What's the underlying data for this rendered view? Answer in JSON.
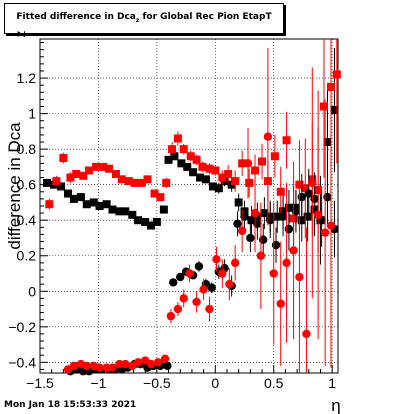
{
  "title": {
    "main": "Fitted difference in Dca",
    "subscript": "z",
    "rest": " for Global Rec Pion EtapT"
  },
  "footer": "Mon Jan 18 15:53:33 2021",
  "chart_data": {
    "type": "scatter",
    "xlabel": "η",
    "ylabel": "difference in Dca",
    "ylabel_subscript": "z",
    "xlim": [
      -1.5,
      1.05
    ],
    "ylim": [
      -0.46,
      1.42
    ],
    "xticks": [
      -1.5,
      -1,
      -0.5,
      0,
      0.5,
      1
    ],
    "xtick_labels": [
      "−1.5",
      "−1",
      "−0.5",
      "0",
      "0.5",
      "1"
    ],
    "yticks": [
      -0.4,
      -0.2,
      0,
      0.2,
      0.4,
      0.6,
      0.8,
      1,
      1.2
    ],
    "ytick_labels": [
      "−0.4",
      "−0.2",
      "0",
      "0.2",
      "0.4",
      "0.6",
      "0.8",
      "1",
      "1.2"
    ],
    "grid": true,
    "series": [
      {
        "marker": "square",
        "color": "#000000",
        "x": [
          -1.44,
          -1.38,
          -1.32,
          -1.26,
          -1.21,
          -1.15,
          -1.1,
          -1.04,
          -0.99,
          -0.93,
          -0.88,
          -0.82,
          -0.77,
          -0.71,
          -0.66,
          -0.6,
          -0.55,
          -0.5,
          -0.44,
          -0.4,
          -0.35,
          -0.29,
          -0.24,
          -0.19,
          -0.13,
          -0.08,
          -0.02,
          0.03,
          0.08,
          0.14,
          0.2,
          0.25,
          0.31,
          0.36,
          0.42,
          0.47,
          0.53,
          0.58,
          0.63,
          0.69,
          0.74,
          0.79,
          0.85,
          0.9,
          0.96,
          1.02
        ],
        "y": [
          0.61,
          0.6,
          0.59,
          0.55,
          0.52,
          0.53,
          0.49,
          0.5,
          0.48,
          0.49,
          0.46,
          0.45,
          0.45,
          0.43,
          0.4,
          0.39,
          0.37,
          0.39,
          0.46,
          0.74,
          0.76,
          0.72,
          0.7,
          0.67,
          0.64,
          0.63,
          0.59,
          0.58,
          0.62,
          0.6,
          0.5,
          0.45,
          0.4,
          0.42,
          0.44,
          0.42,
          0.42,
          0.45,
          0.47,
          0.47,
          0.4,
          0.42,
          0.46,
          0.4,
          0.84,
          1.02
        ],
        "err": [
          0.02,
          0.02,
          0.02,
          0.02,
          0.02,
          0.02,
          0.02,
          0.02,
          0.02,
          0.02,
          0.02,
          0.02,
          0.02,
          0.02,
          0.02,
          0.02,
          0.02,
          0.02,
          0.02,
          0.02,
          0.02,
          0.02,
          0.02,
          0.02,
          0.02,
          0.02,
          0.02,
          0.03,
          0.03,
          0.04,
          0.05,
          0.06,
          0.08,
          0.08,
          0.09,
          0.09,
          0.09,
          0.1,
          0.1,
          0.1,
          0.12,
          0.14,
          0.15,
          0.25,
          0.3,
          0.35
        ]
      },
      {
        "marker": "square",
        "color": "#ff0000",
        "x": [
          -1.42,
          -1.36,
          -1.3,
          -1.24,
          -1.19,
          -1.13,
          -1.08,
          -1.02,
          -0.96,
          -0.91,
          -0.85,
          -0.8,
          -0.74,
          -0.69,
          -0.63,
          -0.58,
          -0.52,
          -0.47,
          -0.42,
          -0.37,
          -0.32,
          -0.27,
          -0.21,
          -0.16,
          -0.11,
          -0.05,
          0.0,
          0.06,
          0.11,
          0.17,
          0.23,
          0.29,
          0.34,
          0.4,
          0.45,
          0.51,
          0.56,
          0.61,
          0.67,
          0.72,
          0.77,
          0.83,
          0.88,
          0.93,
          0.99,
          1.04
        ],
        "y": [
          0.49,
          0.62,
          0.75,
          0.64,
          0.66,
          0.65,
          0.68,
          0.7,
          0.7,
          0.69,
          0.66,
          0.63,
          0.62,
          0.61,
          0.61,
          0.63,
          0.55,
          0.53,
          0.61,
          0.8,
          0.86,
          0.8,
          0.76,
          0.74,
          0.7,
          0.69,
          0.68,
          0.64,
          0.66,
          0.62,
          0.72,
          0.61,
          0.68,
          0.73,
          0.62,
          0.76,
          0.56,
          0.85,
          0.41,
          0.6,
          0.58,
          0.63,
          0.57,
          1.04,
          1.15,
          1.22
        ],
        "err": [
          0.03,
          0.03,
          0.03,
          0.03,
          0.02,
          0.02,
          0.02,
          0.02,
          0.02,
          0.02,
          0.02,
          0.02,
          0.02,
          0.02,
          0.02,
          0.02,
          0.02,
          0.02,
          0.03,
          0.04,
          0.04,
          0.03,
          0.03,
          0.03,
          0.03,
          0.03,
          0.03,
          0.04,
          0.05,
          0.06,
          0.07,
          0.08,
          0.09,
          0.1,
          0.11,
          0.12,
          0.14,
          0.16,
          0.18,
          0.25,
          0.28,
          0.32,
          0.35,
          0.4,
          0.45,
          0.5
        ]
      },
      {
        "marker": "circle",
        "color": "#000000",
        "x": [
          -1.24,
          -1.19,
          -1.13,
          -1.08,
          -1.02,
          -0.97,
          -0.91,
          -0.86,
          -0.8,
          -0.75,
          -0.69,
          -0.64,
          -0.58,
          -0.53,
          -0.47,
          -0.41,
          -0.36,
          -0.3,
          -0.25,
          -0.19,
          -0.14,
          -0.08,
          -0.03,
          0.03,
          0.08,
          0.14,
          0.19,
          0.25,
          0.3,
          0.36,
          0.41,
          0.47,
          0.52,
          0.58,
          0.63,
          0.69,
          0.74,
          0.8,
          0.85,
          0.91,
          0.96,
          1.02
        ],
        "y": [
          -0.45,
          -0.44,
          -0.45,
          -0.45,
          -0.44,
          -0.44,
          -0.44,
          -0.44,
          -0.44,
          -0.43,
          -0.41,
          -0.41,
          -0.43,
          -0.42,
          -0.42,
          -0.42,
          0.05,
          0.08,
          0.11,
          0.09,
          0.14,
          0.04,
          0.02,
          0.11,
          0.13,
          0.03,
          0.38,
          0.42,
          0.3,
          0.38,
          0.29,
          0.4,
          0.26,
          0.42,
          0.35,
          0.45,
          0.53,
          0.55,
          0.52,
          0.4,
          0.53,
          0.35
        ],
        "err": [
          0.02,
          0.02,
          0.02,
          0.02,
          0.02,
          0.02,
          0.02,
          0.02,
          0.02,
          0.02,
          0.02,
          0.02,
          0.02,
          0.02,
          0.02,
          0.02,
          0.02,
          0.02,
          0.02,
          0.02,
          0.03,
          0.03,
          0.03,
          0.04,
          0.05,
          0.06,
          0.07,
          0.08,
          0.08,
          0.09,
          0.09,
          0.1,
          0.1,
          0.11,
          0.12,
          0.12,
          0.13,
          0.14,
          0.15,
          0.15,
          0.16,
          0.16
        ]
      },
      {
        "marker": "circle",
        "color": "#ff0000",
        "x": [
          -1.26,
          -1.21,
          -1.15,
          -1.1,
          -1.04,
          -0.99,
          -0.93,
          -0.88,
          -0.82,
          -0.77,
          -0.71,
          -0.66,
          -0.6,
          -0.55,
          -0.49,
          -0.43,
          -0.38,
          -0.32,
          -0.27,
          -0.22,
          -0.16,
          -0.1,
          -0.05,
          0.01,
          0.06,
          0.12,
          0.17,
          0.23,
          0.28,
          0.34,
          0.39,
          0.45,
          0.5,
          0.56,
          0.61,
          0.67,
          0.72,
          0.78,
          0.83,
          0.88,
          0.94,
          0.99
        ],
        "y": [
          -0.44,
          -0.42,
          -0.41,
          -0.42,
          -0.42,
          -0.43,
          -0.43,
          -0.43,
          -0.41,
          -0.41,
          -0.42,
          -0.4,
          -0.39,
          -0.41,
          -0.4,
          -0.38,
          -0.14,
          -0.1,
          -0.04,
          0.1,
          -0.06,
          0.01,
          -0.1,
          0.18,
          0.1,
          0.04,
          0.16,
          0.34,
          0.72,
          0.44,
          0.2,
          0.87,
          0.1,
          -0.07,
          0.16,
          0.23,
          0.08,
          -0.24,
          0.61,
          0.43,
          0.33,
          0.37
        ],
        "err": [
          0.02,
          0.02,
          0.02,
          0.02,
          0.02,
          0.02,
          0.02,
          0.02,
          0.02,
          0.02,
          0.02,
          0.02,
          0.02,
          0.02,
          0.02,
          0.02,
          0.04,
          0.04,
          0.05,
          0.05,
          0.06,
          0.06,
          0.07,
          0.07,
          0.08,
          0.09,
          0.1,
          0.12,
          0.2,
          0.22,
          0.3,
          0.5,
          0.4,
          0.35,
          0.45,
          0.5,
          0.55,
          0.6,
          0.65,
          0.7,
          0.75,
          0.8
        ]
      }
    ]
  }
}
